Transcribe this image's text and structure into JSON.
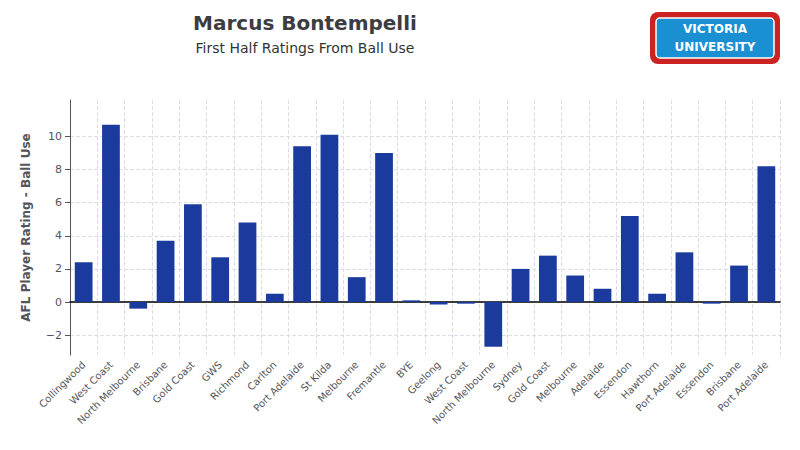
{
  "chart_data": {
    "type": "bar",
    "title": "Marcus Bontempelli",
    "subtitle": "First Half Ratings From Ball Use",
    "ylabel": "AFL Player Rating - Ball Use",
    "annotations": [
      "VICTORIA",
      "UNIVERSITY"
    ],
    "categories": [
      "Collingwood",
      "West Coast",
      "North Melbourne",
      "Brisbane",
      "Gold Coast",
      "GWS",
      "Richmond",
      "Carlton",
      "Port Adelaide",
      "St Kilda",
      "Melbourne",
      "Fremantle",
      "BYE",
      "Geelong",
      "West Coast",
      "North Melbourne",
      "Sydney",
      "Gold Coast",
      "Melbourne",
      "Adelaide",
      "Essendon",
      "Hawthorn",
      "Port Adelaide",
      "Essendon",
      "Brisbane",
      "Port Adelaide"
    ],
    "values": [
      2.4,
      10.7,
      -0.4,
      3.7,
      5.9,
      2.7,
      4.8,
      0.5,
      9.4,
      10.1,
      1.5,
      9.0,
      0.1,
      -0.15,
      -0.1,
      -2.7,
      2.0,
      2.8,
      1.6,
      0.8,
      5.2,
      0.5,
      3.0,
      -0.1,
      2.2,
      8.2
    ],
    "color": "#1a3a9e",
    "ylim": [
      -3.2,
      12.2
    ],
    "yticks": [
      {
        "value": -2,
        "label": "−2"
      },
      0,
      2,
      4,
      6,
      8,
      10
    ],
    "grid": true
  }
}
